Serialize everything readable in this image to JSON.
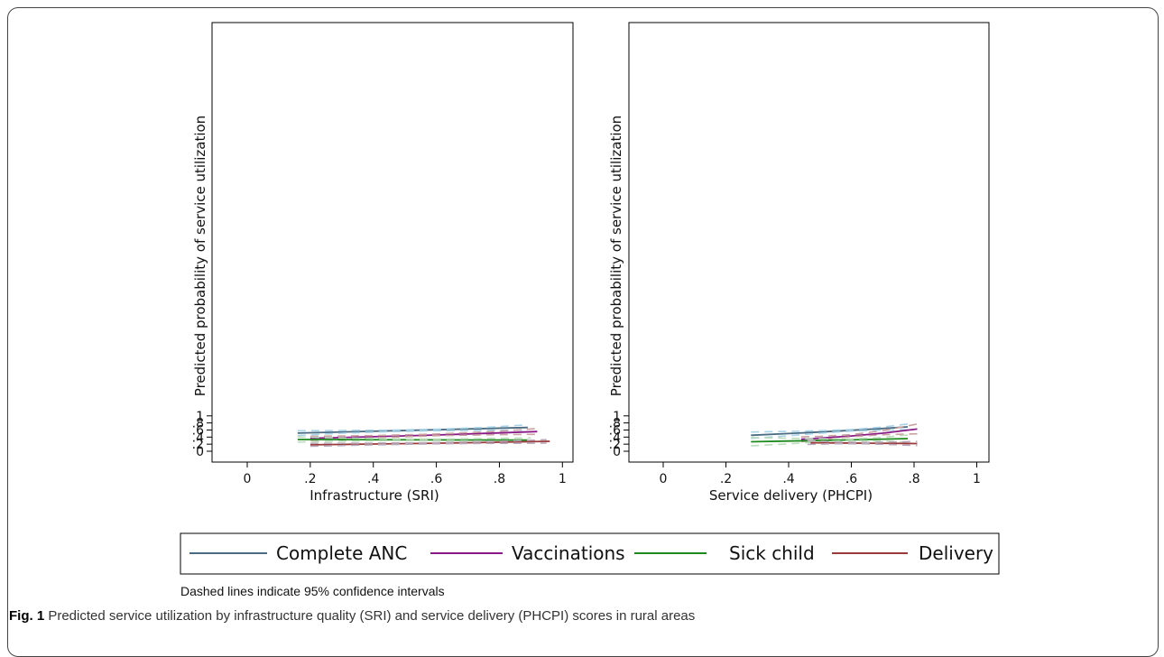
{
  "chart_data": [
    {
      "type": "line",
      "xlabel": "Infrastructure (SRI)",
      "ylabel": "Predicted probability of service utilization",
      "xlim": [
        0,
        1
      ],
      "ylim": [
        0,
        1
      ],
      "xticks": [
        0,
        0.2,
        0.4,
        0.6,
        0.8,
        1
      ],
      "xtick_labels": [
        "0",
        ".2",
        ".4",
        ".6",
        ".8",
        "1"
      ],
      "yticks": [
        0,
        0.2,
        0.4,
        0.6,
        0.8,
        1
      ],
      "ytick_labels": [
        "0",
        ".2",
        ".4",
        ".6",
        ".8",
        "1"
      ],
      "grid": false,
      "series": [
        {
          "name": "Complete ANC",
          "color": "#4a6b82",
          "dash": false,
          "x": [
            0.16,
            0.89
          ],
          "y": [
            0.512,
            0.671
          ]
        },
        {
          "color": "#a9d4e6",
          "dash": true,
          "x": [
            0.16,
            0.3,
            0.45,
            0.6,
            0.75,
            0.89
          ],
          "y": [
            0.58,
            0.586,
            0.596,
            0.622,
            0.672,
            0.748
          ]
        },
        {
          "color": "#a9d4e6",
          "dash": true,
          "x": [
            0.16,
            0.3,
            0.45,
            0.6,
            0.75,
            0.89
          ],
          "y": [
            0.445,
            0.51,
            0.55,
            0.578,
            0.592,
            0.595
          ]
        },
        {
          "name": "Vaccinations",
          "color": "#8b1a89",
          "dash": false,
          "x": [
            0.2,
            0.4,
            0.6,
            0.8,
            0.92
          ],
          "y": [
            0.365,
            0.41,
            0.46,
            0.518,
            0.557
          ]
        },
        {
          "color": "#c9a1a1",
          "dash": true,
          "x": [
            0.2,
            0.4,
            0.6,
            0.8,
            0.92
          ],
          "y": [
            0.422,
            0.442,
            0.487,
            0.564,
            0.64
          ]
        },
        {
          "color": "#c9a1a1",
          "dash": true,
          "x": [
            0.2,
            0.4,
            0.6,
            0.8,
            0.92
          ],
          "y": [
            0.307,
            0.38,
            0.44,
            0.47,
            0.476
          ]
        },
        {
          "name": "Sick child",
          "color": "#1c8a1c",
          "dash": false,
          "x": [
            0.16,
            0.89
          ],
          "y": [
            0.331,
            0.315
          ]
        },
        {
          "color": "#bcdcbc",
          "dash": true,
          "x": [
            0.16,
            0.3,
            0.45,
            0.6,
            0.75,
            0.9
          ],
          "y": [
            0.403,
            0.378,
            0.35,
            0.345,
            0.36,
            0.376
          ]
        },
        {
          "color": "#bcdcbc",
          "dash": true,
          "x": [
            0.16,
            0.3,
            0.45,
            0.6,
            0.75,
            0.9
          ],
          "y": [
            0.26,
            0.285,
            0.3,
            0.3,
            0.285,
            0.258
          ]
        },
        {
          "name": "Delivery",
          "color": "#9b3a3a",
          "dash": false,
          "x": [
            0.2,
            0.4,
            0.6,
            0.8,
            0.96
          ],
          "y": [
            0.181,
            0.203,
            0.228,
            0.256,
            0.28
          ]
        },
        {
          "color": "#b8a8b8",
          "dash": true,
          "x": [
            0.2,
            0.4,
            0.6,
            0.8,
            0.95
          ],
          "y": [
            0.222,
            0.23,
            0.245,
            0.28,
            0.326
          ]
        },
        {
          "color": "#b8a8b8",
          "dash": true,
          "x": [
            0.2,
            0.4,
            0.6,
            0.8,
            0.95
          ],
          "y": [
            0.141,
            0.18,
            0.208,
            0.225,
            0.229
          ]
        }
      ]
    },
    {
      "type": "line",
      "xlabel": "Service delivery (PHCPI)",
      "ylabel": "Predicted probability of service utilization",
      "xlim": [
        0,
        1
      ],
      "ylim": [
        0,
        1
      ],
      "xticks": [
        0,
        0.2,
        0.4,
        0.6,
        0.8,
        1
      ],
      "xtick_labels": [
        "0",
        ".2",
        ".4",
        ".6",
        ".8",
        "1"
      ],
      "yticks": [
        0,
        0.2,
        0.4,
        0.6,
        0.8,
        1
      ],
      "ytick_labels": [
        "0",
        ".2",
        ".4",
        ".6",
        ".8",
        "1"
      ],
      "grid": false,
      "series": [
        {
          "name": "Complete ANC",
          "color": "#4a6b82",
          "dash": false,
          "x": [
            0.28,
            0.4,
            0.5,
            0.6,
            0.7,
            0.78
          ],
          "y": [
            0.452,
            0.5,
            0.543,
            0.592,
            0.644,
            0.69
          ]
        },
        {
          "color": "#a9d4e6",
          "dash": true,
          "x": [
            0.28,
            0.4,
            0.5,
            0.6,
            0.7,
            0.78
          ],
          "y": [
            0.543,
            0.56,
            0.578,
            0.612,
            0.684,
            0.77
          ]
        },
        {
          "color": "#a9d4e6",
          "dash": true,
          "x": [
            0.28,
            0.4,
            0.5,
            0.6,
            0.7,
            0.78
          ],
          "y": [
            0.362,
            0.44,
            0.51,
            0.568,
            0.597,
            0.606
          ]
        },
        {
          "name": "Vaccinations",
          "color": "#8b1a89",
          "dash": false,
          "x": [
            0.44,
            0.5,
            0.6,
            0.7,
            0.81
          ],
          "y": [
            0.34,
            0.37,
            0.43,
            0.51,
            0.628
          ]
        },
        {
          "color": "#c9a1a1",
          "dash": true,
          "x": [
            0.44,
            0.5,
            0.6,
            0.7,
            0.81
          ],
          "y": [
            0.405,
            0.42,
            0.47,
            0.58,
            0.77
          ]
        },
        {
          "color": "#c9a1a1",
          "dash": true,
          "x": [
            0.44,
            0.5,
            0.6,
            0.7,
            0.81
          ],
          "y": [
            0.27,
            0.322,
            0.41,
            0.466,
            0.493
          ]
        },
        {
          "name": "Sick child",
          "color": "#1c8a1c",
          "dash": false,
          "x": [
            0.28,
            0.4,
            0.5,
            0.6,
            0.7,
            0.78
          ],
          "y": [
            0.268,
            0.287,
            0.304,
            0.322,
            0.342,
            0.358
          ]
        },
        {
          "color": "#bcdcbc",
          "dash": true,
          "x": [
            0.28,
            0.4,
            0.5,
            0.6,
            0.7,
            0.78
          ],
          "y": [
            0.39,
            0.368,
            0.352,
            0.348,
            0.39,
            0.458
          ]
        },
        {
          "color": "#bcdcbc",
          "dash": true,
          "x": [
            0.28,
            0.4,
            0.5,
            0.6,
            0.7,
            0.78
          ],
          "y": [
            0.152,
            0.21,
            0.268,
            0.3,
            0.288,
            0.262
          ]
        },
        {
          "name": "Delivery",
          "color": "#9b3a3a",
          "dash": false,
          "x": [
            0.47,
            0.55,
            0.65,
            0.75,
            0.81
          ],
          "y": [
            0.24,
            0.235,
            0.228,
            0.222,
            0.218
          ]
        },
        {
          "color": "#b8a8b8",
          "dash": true,
          "x": [
            0.46,
            0.55,
            0.65,
            0.75,
            0.81
          ],
          "y": [
            0.3,
            0.26,
            0.25,
            0.265,
            0.275
          ]
        },
        {
          "color": "#b8a8b8",
          "dash": true,
          "x": [
            0.46,
            0.55,
            0.65,
            0.75,
            0.81
          ],
          "y": [
            0.194,
            0.212,
            0.21,
            0.18,
            0.16
          ]
        }
      ]
    }
  ],
  "legend": {
    "items": [
      {
        "label": "Complete ANC",
        "color": "#4a6b82"
      },
      {
        "label": "Vaccinations",
        "color": "#8b1a89"
      },
      {
        "label": "Sick child",
        "color": "#1c8a1c"
      },
      {
        "label": "Delivery",
        "color": "#9b3a3a"
      }
    ]
  },
  "note": "Dashed lines indicate 95% confidence intervals",
  "caption": {
    "label": "Fig. 1",
    "text": "Predicted service utilization by infrastructure quality (SRI) and service delivery (PHCPI) scores in rural areas"
  }
}
